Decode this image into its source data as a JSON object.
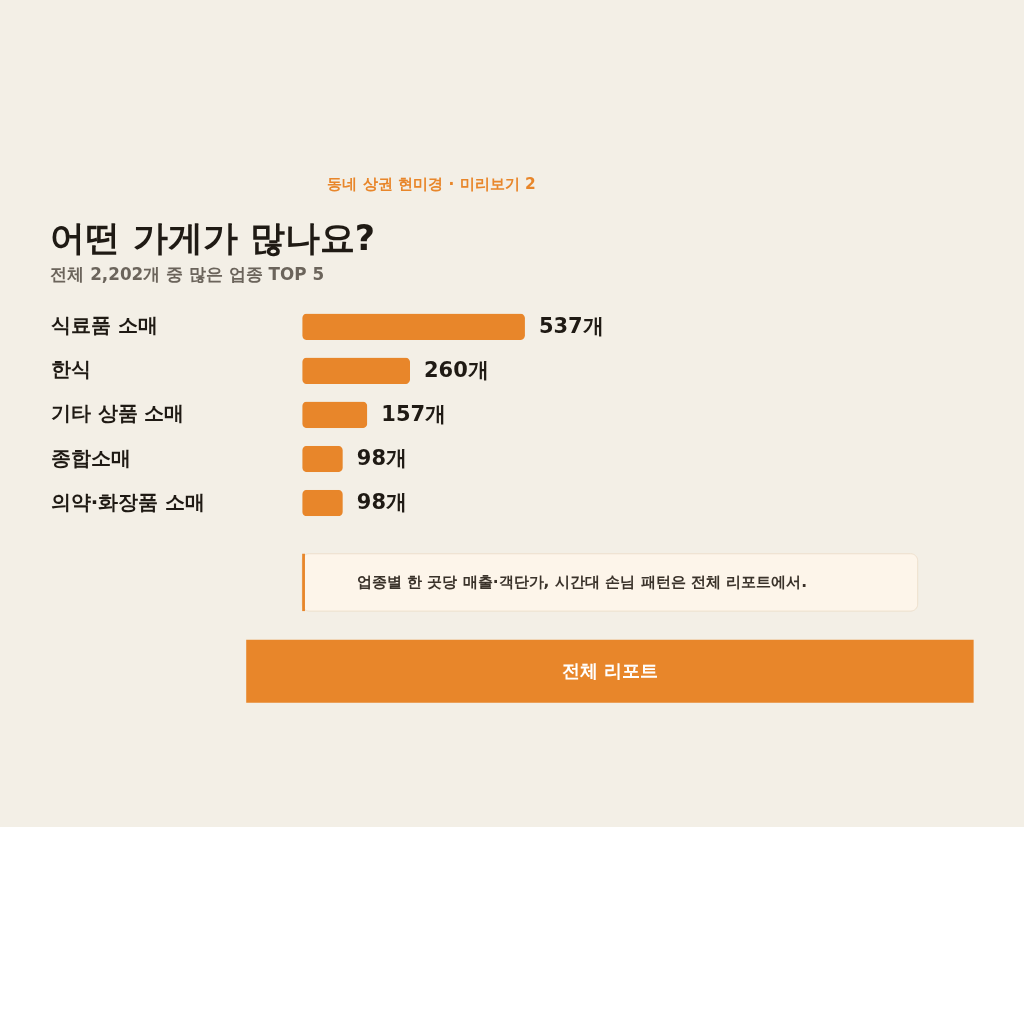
{
  "chart_data": {
    "type": "bar",
    "orientation": "horizontal",
    "title": "어떤 가게가 많나요?",
    "subtitle": "전체 2,202개 중 많은 업종 TOP 5",
    "categories": [
      "식료품 소매",
      "한식",
      "기타 상품 소매",
      "종합소매",
      "의약·화장품 소매"
    ],
    "values": [
      537,
      260,
      157,
      98,
      98
    ],
    "color": "#e8862a",
    "data_labels": true,
    "value_labels": [
      "537개",
      "260개",
      "157개",
      "98개",
      "98개"
    ],
    "annotations": [
      "동네 상권 현미경 · 미리보기 2",
      "업종별 한 곳당 매출·객단가, 시간대 손님 패턴은 전체 리포트에서.",
      "전체 리포트"
    ]
  }
}
